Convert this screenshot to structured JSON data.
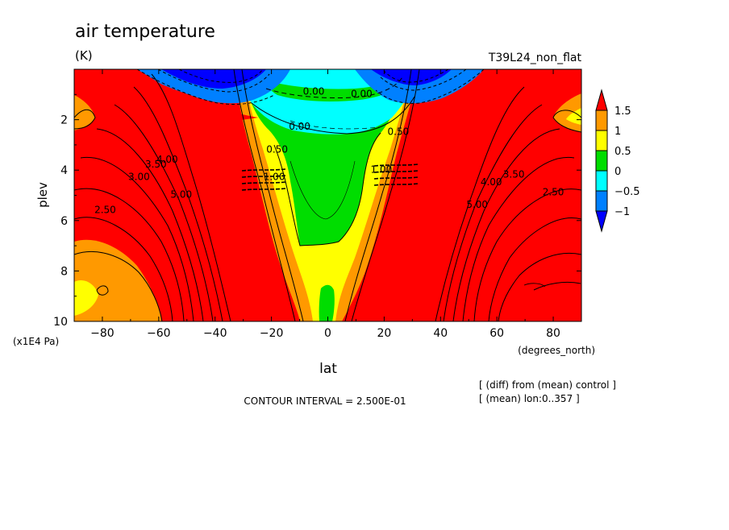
{
  "chart_data": {
    "type": "contour",
    "title": "air temperature",
    "units": "(K)",
    "run_label": "T39L24_non_flat",
    "xlabel": "lat",
    "xunits": "(degrees_north)",
    "ylabel": "plev",
    "yunits": "(x1E4 Pa)",
    "xlim": [
      -90,
      90
    ],
    "ylim": [
      10,
      0
    ],
    "x_ticks": [
      -80,
      -60,
      -40,
      -20,
      0,
      20,
      40,
      60,
      80
    ],
    "y_ticks": [
      2,
      4,
      6,
      8,
      10
    ],
    "contour_interval_text": "CONTOUR INTERVAL = 2.500E-01",
    "notes": [
      "[ (diff) from (mean) control ]",
      "[ (mean) lon:0..357 ]"
    ],
    "colorbar": {
      "levels": [
        "1.5",
        "1",
        "0.5",
        "0",
        "-0.5",
        "-1"
      ],
      "colors": [
        "#ff0000",
        "#ff9900",
        "#ffff00",
        "#00dd00",
        "#00ffff",
        "#0080ff",
        "#0000ff"
      ]
    },
    "contour_labels": [
      {
        "text": "0.00",
        "lat": -5,
        "plev": 1.0
      },
      {
        "text": "0.00",
        "lat": 12,
        "plev": 1.1
      },
      {
        "text": "0.00",
        "lat": -10,
        "plev": 2.4
      },
      {
        "text": "0.50",
        "lat": -18,
        "plev": 3.3
      },
      {
        "text": "0.50",
        "lat": 25,
        "plev": 2.6
      },
      {
        "text": "1.00",
        "lat": -19,
        "plev": 4.4
      },
      {
        "text": "1.00",
        "lat": 19,
        "plev": 4.1
      },
      {
        "text": "3.00",
        "lat": -67,
        "plev": 4.4
      },
      {
        "text": "3.50",
        "lat": -61,
        "plev": 3.9
      },
      {
        "text": "4.00",
        "lat": -57,
        "plev": 3.7
      },
      {
        "text": "5.00",
        "lat": -52,
        "plev": 5.1
      },
      {
        "text": "2.50",
        "lat": -79,
        "plev": 5.7
      },
      {
        "text": "5.00",
        "lat": 53,
        "plev": 5.5
      },
      {
        "text": "4.00",
        "lat": 58,
        "plev": 4.6
      },
      {
        "text": "3.50",
        "lat": 66,
        "plev": 4.3
      },
      {
        "text": "2.50",
        "lat": 80,
        "plev": 5.0
      }
    ]
  }
}
